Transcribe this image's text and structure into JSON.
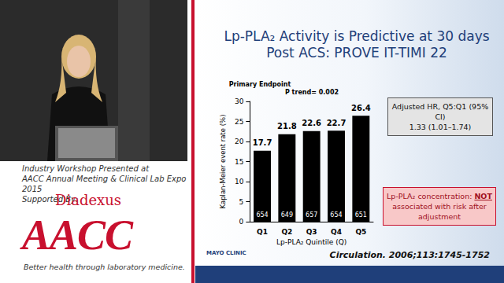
{
  "chart_data": {
    "type": "bar",
    "title": "Lp-PLA₂ Activity is Predictive at 30 days Post ACS: PROVE IT-TIMI 22",
    "categories": [
      "Q1",
      "Q2",
      "Q3",
      "Q4",
      "Q5"
    ],
    "values": [
      17.7,
      21.8,
      22.6,
      22.7,
      26.4
    ],
    "n": [
      654,
      649,
      657,
      654,
      651
    ],
    "color": "#000000",
    "ylim": [
      0,
      30
    ],
    "yticks": [
      0,
      5,
      10,
      15,
      20,
      25,
      30
    ],
    "y_label": "Kaplan-Meier event rate (%)",
    "x_label": "Lp-PLA₂ Quintile (Q)",
    "data_labels": true,
    "grid": false,
    "annotations": [
      "Primary Endpoint",
      "P trend= 0.002"
    ]
  },
  "boxes": [
    {
      "lines": [
        "Adjusted HR, Q5:Q1 (95% CI)",
        "1.33 (1.01–1.74)"
      ]
    },
    {
      "text_before": "Lp-PLA₂ concentration: ",
      "emphasis": "NOT",
      "text_after": " associated with risk after adjustment"
    }
  ],
  "footer": {
    "logo": "MAYO CLINIC",
    "citation": "Circulation. 2006;113:1745-1752"
  },
  "sidebar": {
    "lines": [
      "Industry Workshop Presented at",
      "AACC Annual Meeting & Clinical Lab Expo 2015",
      "Supported By:"
    ],
    "sponsor": "Diadexus",
    "logo": "AACC",
    "tagline": "Better health through laboratory medicine."
  }
}
